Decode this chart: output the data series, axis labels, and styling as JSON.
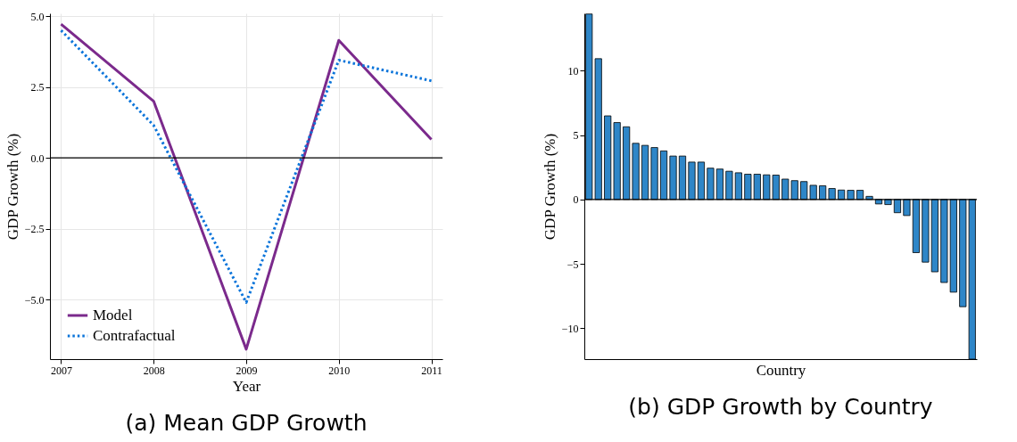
{
  "chart_data": [
    {
      "type": "line",
      "title": "(a) Mean GDP Growth",
      "xlabel": "Year",
      "ylabel": "GDP Growth (%)",
      "x": [
        2007,
        2008,
        2009,
        2010,
        2011
      ],
      "series": [
        {
          "name": "Model",
          "color": "#7b2a8c",
          "line_style": "solid",
          "values": [
            4.72,
            2.0,
            -6.75,
            4.15,
            0.65
          ]
        },
        {
          "name": "Contrafactual",
          "color": "#0a74da",
          "line_style": "dotted",
          "values": [
            4.5,
            1.15,
            -5.1,
            3.45,
            2.72
          ]
        }
      ],
      "xlim": [
        2006.88,
        2011.12
      ],
      "ylim": [
        -7.1,
        5.1
      ],
      "xticks": [
        2007,
        2008,
        2009,
        2010,
        2011
      ],
      "yticks": [
        {
          "value": -5,
          "label": "−5.0"
        },
        {
          "value": -2.5,
          "label": "−2.5"
        },
        {
          "value": 0,
          "label": "0.0"
        },
        {
          "value": 2.5,
          "label": "2.5"
        },
        {
          "value": 5,
          "label": "5.0"
        }
      ],
      "grid": true,
      "legend": "bottom left",
      "ref_lines": [
        {
          "axis": "y",
          "value": 0,
          "color": "#000000"
        }
      ]
    },
    {
      "type": "bar",
      "title": "(b) GDP Growth by Country",
      "xlabel": "Country",
      "ylabel": "GDP Growth (%)",
      "categories": [
        null,
        null,
        null,
        null,
        null,
        null,
        null,
        null,
        null,
        null,
        null,
        null,
        null,
        null,
        null,
        null,
        null,
        null,
        null,
        null,
        null,
        null,
        null,
        null,
        null,
        null,
        null,
        null,
        null,
        null,
        null,
        null,
        null,
        null,
        null,
        null,
        null,
        null,
        null,
        null,
        null,
        null
      ],
      "values": [
        14.4,
        10.93,
        6.49,
        5.97,
        5.64,
        4.36,
        4.2,
        4.03,
        3.77,
        3.37,
        3.37,
        2.9,
        2.9,
        2.43,
        2.36,
        2.19,
        2.07,
        1.96,
        1.96,
        1.91,
        1.89,
        1.58,
        1.46,
        1.39,
        1.1,
        1.06,
        0.85,
        0.73,
        0.71,
        0.71,
        0.24,
        -0.35,
        -0.4,
        -1.03,
        -1.25,
        -4.13,
        -4.87,
        -5.62,
        -6.45,
        -7.2,
        -8.33,
        -12.4
      ],
      "color": "#2e86c8",
      "ylim": [
        -12.4,
        14.45
      ],
      "yticks": [
        -10,
        -5,
        0,
        5,
        10
      ],
      "grid": false,
      "tick_labels": "y",
      "ref_lines": [
        {
          "axis": "y",
          "value": 0,
          "color": "#000000"
        }
      ]
    }
  ]
}
